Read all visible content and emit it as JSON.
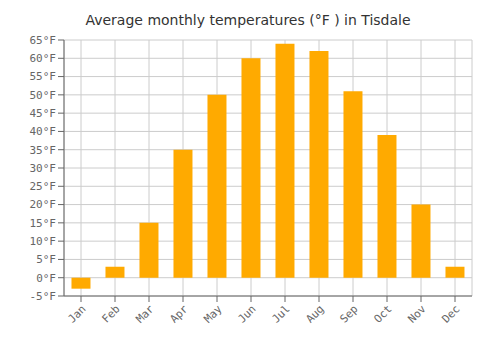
{
  "chart_data": {
    "type": "bar",
    "title": "Average monthly temperatures (°F ) in Tisdale",
    "categories": [
      "Jan",
      "Feb",
      "Mar",
      "Apr",
      "May",
      "Jun",
      "Jul",
      "Aug",
      "Sep",
      "Oct",
      "Nov",
      "Dec"
    ],
    "values": [
      -3,
      3,
      15,
      35,
      50,
      60,
      64,
      62,
      51,
      39,
      20,
      3
    ],
    "color": "#FFAA00",
    "ylim": [
      -5,
      65
    ],
    "yticks": [
      {
        "value": -5,
        "label": "-5°F"
      },
      {
        "value": 0,
        "label": "0°F"
      },
      {
        "value": 5,
        "label": "5°F"
      },
      {
        "value": 10,
        "label": "10°F"
      },
      {
        "value": 15,
        "label": "15°F"
      },
      {
        "value": 20,
        "label": "20°F"
      },
      {
        "value": 25,
        "label": "25°F"
      },
      {
        "value": 30,
        "label": "30°F"
      },
      {
        "value": 35,
        "label": "35°F"
      },
      {
        "value": 40,
        "label": "40°F"
      },
      {
        "value": 45,
        "label": "45°F"
      },
      {
        "value": 50,
        "label": "50°F"
      },
      {
        "value": 55,
        "label": "55°F"
      },
      {
        "value": 60,
        "label": "60°F"
      },
      {
        "value": 65,
        "label": "65°F"
      }
    ],
    "grid": true
  }
}
